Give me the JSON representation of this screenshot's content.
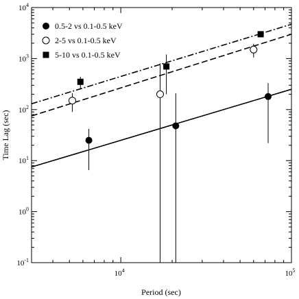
{
  "chart_data": {
    "type": "scatter",
    "xlabel": "Period (sec)",
    "ylabel": "Time Lag (sec)",
    "xscale": "log",
    "yscale": "log",
    "xlim": [
      3000,
      100000
    ],
    "ylim": [
      0.1,
      10000
    ],
    "grid": false,
    "legend_position": "top-left",
    "x_ticks": [
      {
        "value": 10000,
        "base": "10",
        "exp": "4"
      },
      {
        "value": 100000,
        "base": "10",
        "exp": "5"
      }
    ],
    "y_ticks": [
      {
        "value": 0.1,
        "base": "10",
        "exp": "-1"
      },
      {
        "value": 1,
        "base": "10",
        "exp": "0"
      },
      {
        "value": 10,
        "base": "10",
        "exp": "1"
      },
      {
        "value": 100,
        "base": "10",
        "exp": "2"
      },
      {
        "value": 1000,
        "base": "10",
        "exp": "3"
      },
      {
        "value": 10000,
        "base": "10",
        "exp": "4"
      }
    ],
    "series": [
      {
        "name": "0.5-2 vs 0.1-0.5 keV",
        "marker": "filled-circle",
        "points": [
          {
            "x": 6500,
            "y": 25,
            "ylo": 6.5,
            "yhi": 42
          },
          {
            "x": 21000,
            "y": 48,
            "ylo": 0.1,
            "yhi": 210
          },
          {
            "x": 73000,
            "y": 180,
            "ylo": 22,
            "yhi": 330
          }
        ],
        "fit": {
          "style": "solid",
          "x": [
            3000,
            100000
          ],
          "y": [
            7.5,
            250
          ]
        }
      },
      {
        "name": "2-5 vs 0.1-0.5 keV",
        "marker": "open-circle",
        "points": [
          {
            "x": 5200,
            "y": 150,
            "ylo": 90,
            "yhi": 210
          },
          {
            "x": 17000,
            "y": 200,
            "ylo": 0.1,
            "yhi": 800
          },
          {
            "x": 60000,
            "y": 1500,
            "ylo": 1050,
            "yhi": 1950
          }
        ],
        "fit": {
          "style": "dashed",
          "x": [
            3000,
            100000
          ],
          "y": [
            75,
            3000
          ]
        }
      },
      {
        "name": "5-10 vs 0.1-0.5 keV",
        "marker": "filled-square",
        "points": [
          {
            "x": 5800,
            "y": 350,
            "ylo": 260,
            "yhi": 440
          },
          {
            "x": 18500,
            "y": 700,
            "ylo": 200,
            "yhi": 1200
          },
          {
            "x": 66000,
            "y": 3000,
            "ylo": 2700,
            "yhi": 3300
          }
        ],
        "fit": {
          "style": "dash-dot",
          "x": [
            3000,
            100000
          ],
          "y": [
            130,
            4700
          ]
        }
      }
    ]
  }
}
